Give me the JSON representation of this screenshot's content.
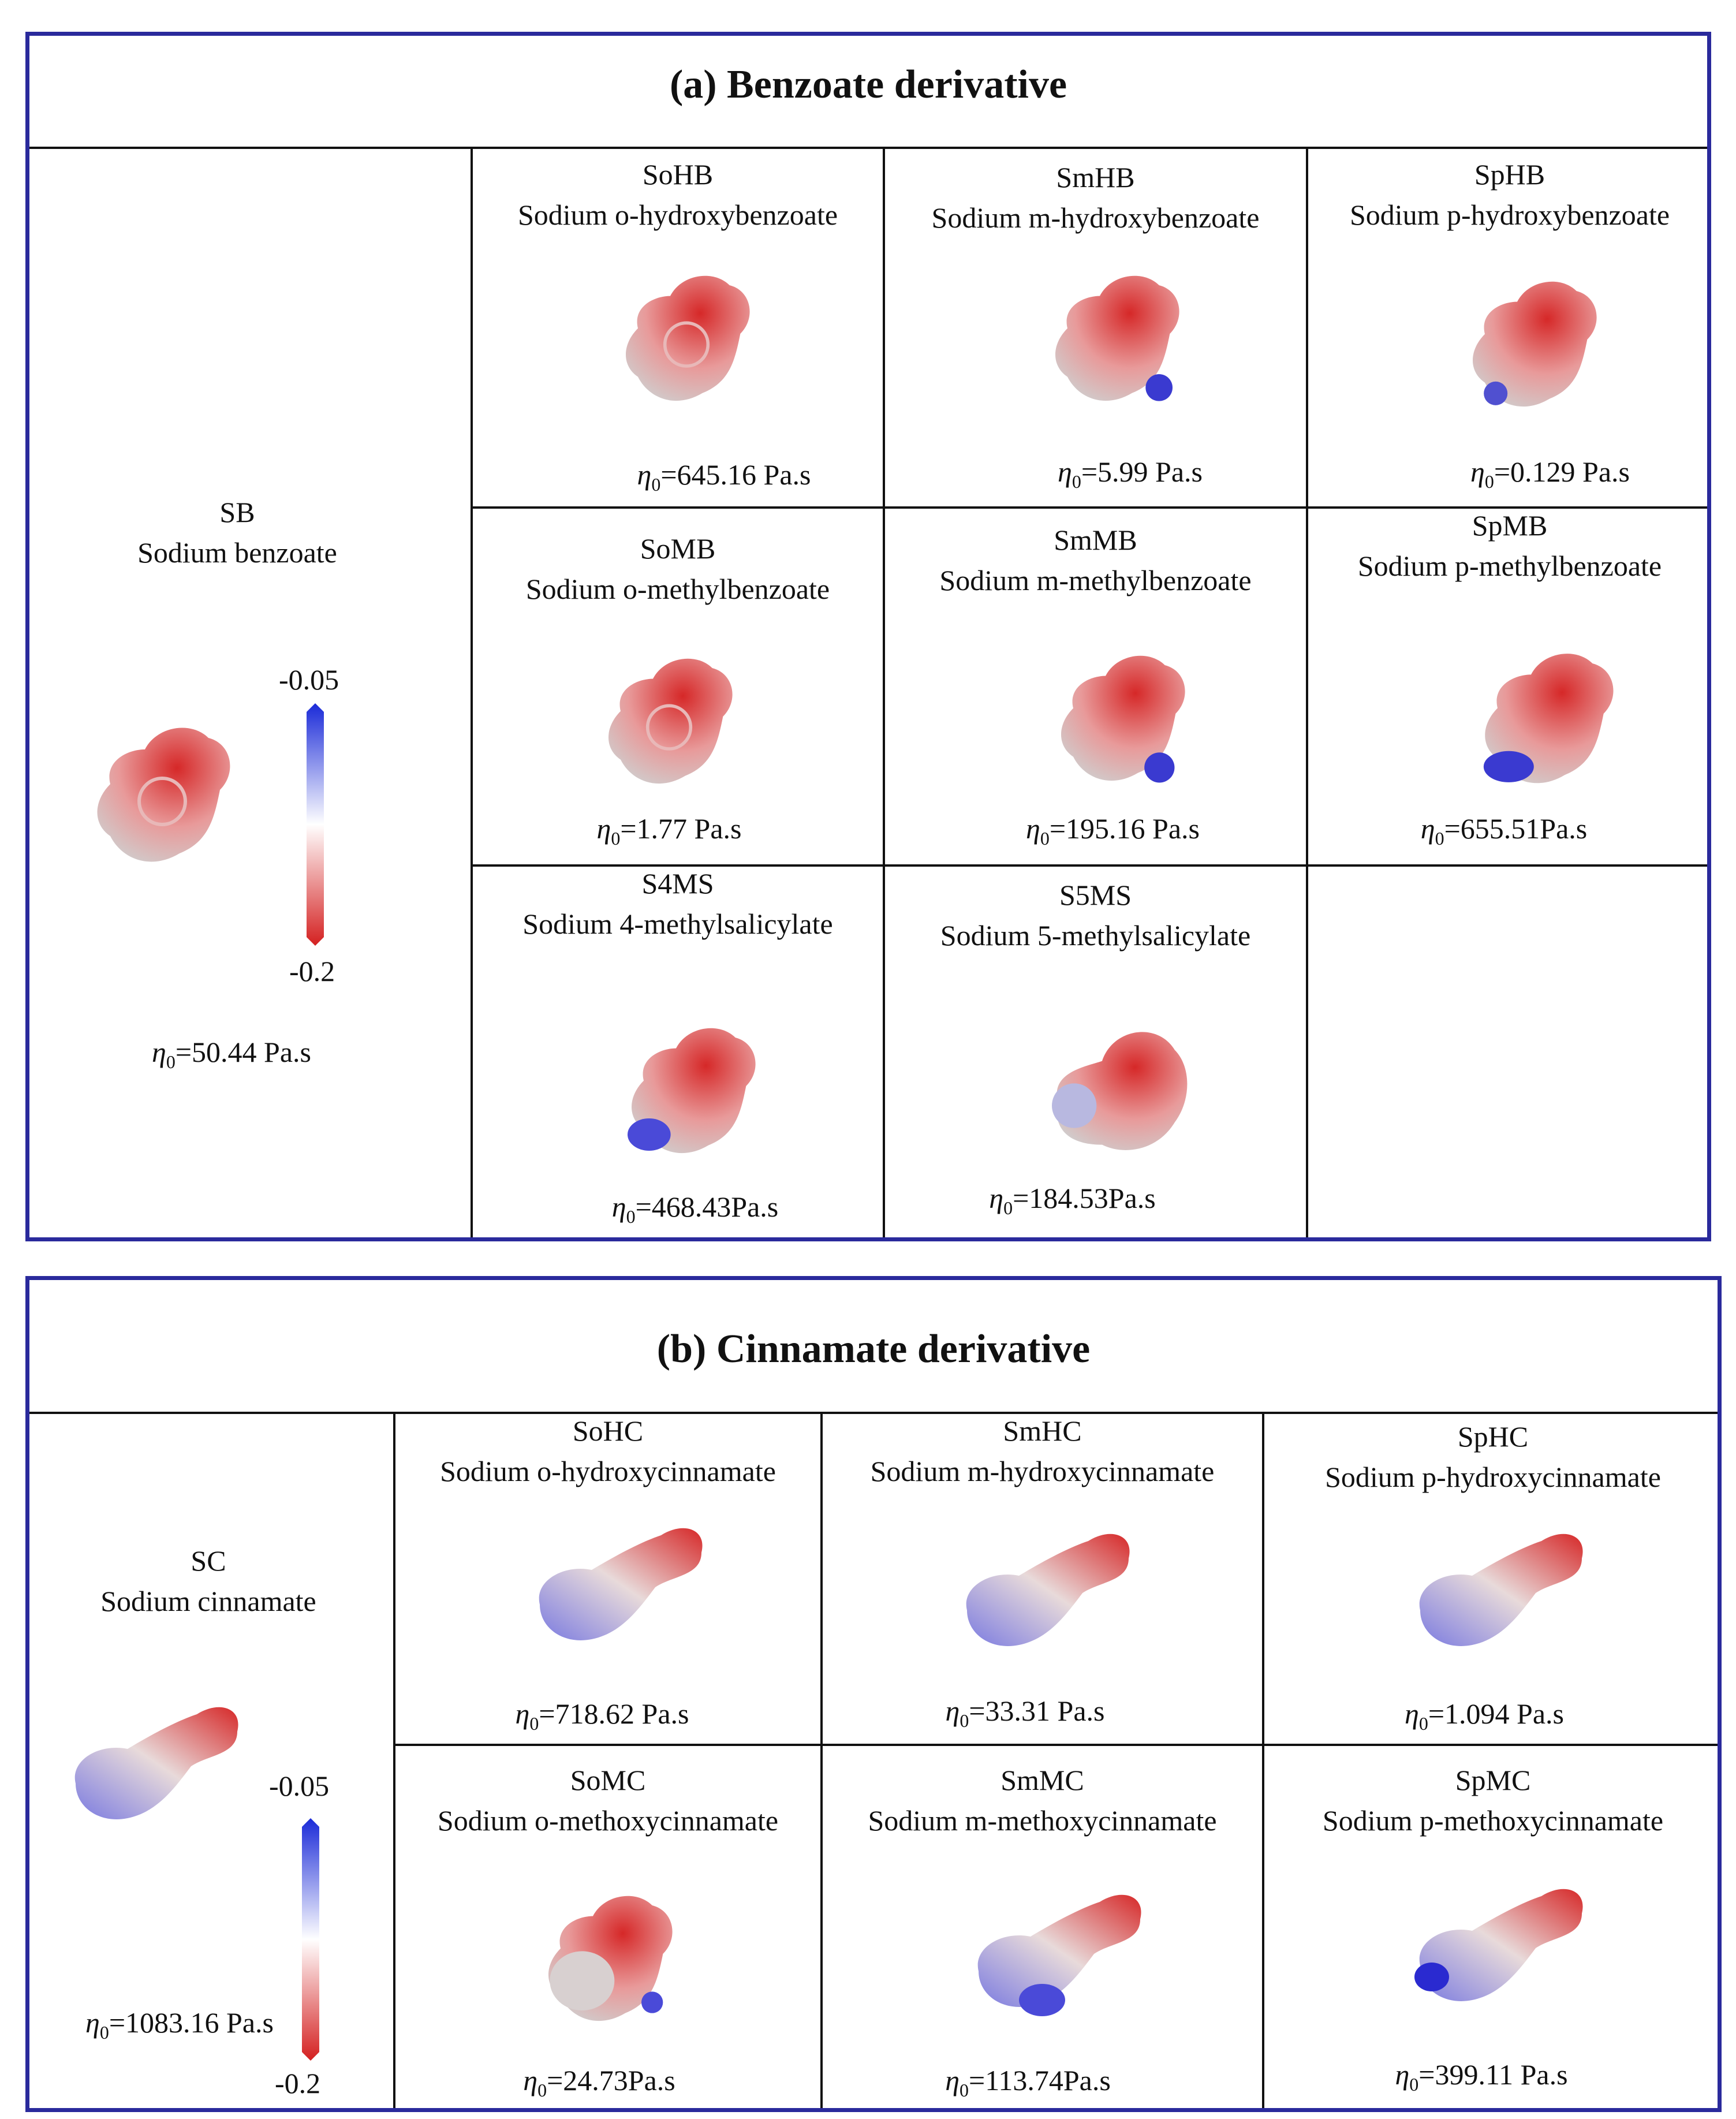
{
  "panels": [
    {
      "title": "(a) Benzoate derivative",
      "reference": {
        "abbr": "SB",
        "name": "Sodium benzoate",
        "viscosity": "=50.44 Pa.s"
      },
      "colorbar": {
        "max": "-0.05",
        "min": "-0.2"
      },
      "cells": [
        {
          "abbr": "SoHB",
          "name": "Sodium o-hydroxybenzoate",
          "viscosity": "=645.16 Pa.s"
        },
        {
          "abbr": "SmHB",
          "name": "Sodium m-hydroxybenzoate",
          "viscosity": "=5.99 Pa.s"
        },
        {
          "abbr": "SpHB",
          "name": "Sodium p-hydroxybenzoate",
          "viscosity": "=0.129 Pa.s"
        },
        {
          "abbr": "SoMB",
          "name": "Sodium o-methylbenzoate",
          "viscosity": "=1.77 Pa.s"
        },
        {
          "abbr": "SmMB",
          "name": "Sodium m-methylbenzoate",
          "viscosity": "=195.16 Pa.s"
        },
        {
          "abbr": "SpMB",
          "name": "Sodium p-methylbenzoate",
          "viscosity": "=655.51Pa.s"
        },
        {
          "abbr": "S4MS",
          "name": "Sodium 4-methylsalicylate",
          "viscosity": "=468.43Pa.s"
        },
        {
          "abbr": "S5MS",
          "name": "Sodium 5-methylsalicylate",
          "viscosity": "=184.53Pa.s"
        }
      ]
    },
    {
      "title": "(b) Cinnamate derivative",
      "reference": {
        "abbr": "SC",
        "name": "Sodium cinnamate",
        "viscosity": "=1083.16 Pa.s"
      },
      "colorbar": {
        "max": "-0.05",
        "min": "-0.2"
      },
      "cells": [
        {
          "abbr": "SoHC",
          "name": "Sodium o-hydroxycinnamate",
          "viscosity": "=718.62 Pa.s"
        },
        {
          "abbr": "SmHC",
          "name": "Sodium m-hydroxycinnamate",
          "viscosity": "=33.31 Pa.s"
        },
        {
          "abbr": "SpHC",
          "name": "Sodium p-hydroxycinnamate",
          "viscosity": "=1.094 Pa.s"
        },
        {
          "abbr": "SoMC",
          "name": "Sodium o-methoxycinnamate",
          "viscosity": "=24.73Pa.s"
        },
        {
          "abbr": "SmMC",
          "name": "Sodium m-methoxycinnamate",
          "viscosity": "=113.74Pa.s"
        },
        {
          "abbr": "SpMC",
          "name": "Sodium p-methoxycinnamate",
          "viscosity": "=399.11 Pa.s"
        }
      ]
    }
  ],
  "eta_symbol": "η",
  "eta_subscript": "0",
  "colors": {
    "frame": "#2a2a9c",
    "negative": "#d42020",
    "neutral": "#ffffff",
    "positive": "#1a2ad8"
  }
}
